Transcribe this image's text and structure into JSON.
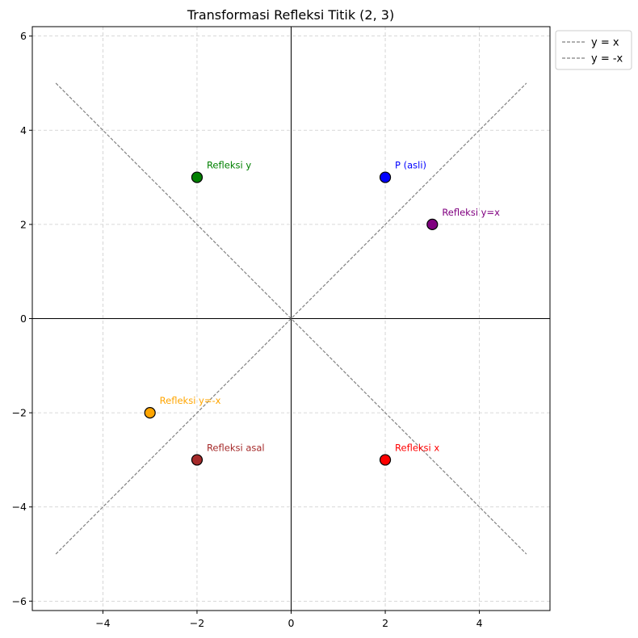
{
  "chart_data": {
    "type": "scatter",
    "title": "Transformasi Refleksi Titik (2, 3)",
    "xlabel": "",
    "ylabel": "",
    "xlim": [
      -5.5,
      5.5
    ],
    "ylim": [
      -6.2,
      6.2
    ],
    "x_ticks": [
      -4,
      -2,
      0,
      2,
      4
    ],
    "y_ticks": [
      -6,
      -4,
      -2,
      0,
      2,
      4,
      6
    ],
    "x_tick_labels": [
      "−4",
      "−2",
      "0",
      "2",
      "4"
    ],
    "y_tick_labels": [
      "−6",
      "−4",
      "−2",
      "0",
      "2",
      "4",
      "6"
    ],
    "grid": true,
    "legend_position": "outside-top-right",
    "lines": [
      {
        "name": "y = x",
        "x": [
          -5,
          5
        ],
        "y": [
          -5,
          5
        ],
        "color": "#808080",
        "style": "dashed"
      },
      {
        "name": "y = -x",
        "x": [
          -5,
          5
        ],
        "y": [
          5,
          -5
        ],
        "color": "#808080",
        "style": "dashed"
      }
    ],
    "points": [
      {
        "label": "P (asli)",
        "x": 2,
        "y": 3,
        "color": "#0000ff"
      },
      {
        "label": "Refleksi x",
        "x": 2,
        "y": -3,
        "color": "#ff0000"
      },
      {
        "label": "Refleksi y",
        "x": -2,
        "y": 3,
        "color": "#008000"
      },
      {
        "label": "Refleksi asal",
        "x": -2,
        "y": -3,
        "color": "#a52a2a"
      },
      {
        "label": "Refleksi y=x",
        "x": 3,
        "y": 2,
        "color": "#800080"
      },
      {
        "label": "Refleksi y=-x",
        "x": -3,
        "y": -2,
        "color": "#ffa500"
      }
    ]
  }
}
